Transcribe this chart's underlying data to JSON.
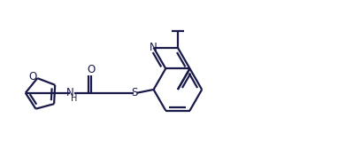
{
  "bg_color": "#ffffff",
  "line_color": "#1a1a4a",
  "line_width": 1.6,
  "figsize": [
    3.82,
    1.86
  ],
  "dpi": 100,
  "xlim": [
    0,
    10
  ],
  "ylim": [
    0,
    4.87
  ]
}
